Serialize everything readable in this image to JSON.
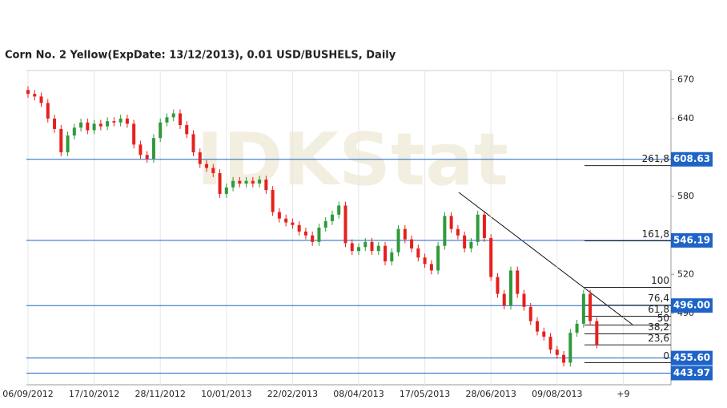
{
  "chart_data": {
    "type": "candlestick",
    "title": "Corn  No. 2 Yellow(ExpDate: 13/12/2013), 0.01 USD/BUSHELS, Daily",
    "watermark": "IDKStat",
    "categories": [
      "06/09/2012",
      null,
      null,
      null,
      null,
      null,
      null,
      null,
      null,
      null,
      "17/10/2012",
      null,
      null,
      null,
      null,
      null,
      null,
      null,
      null,
      null,
      "28/11/2012",
      null,
      null,
      null,
      null,
      null,
      null,
      null,
      null,
      null,
      "10/01/2013",
      null,
      null,
      null,
      null,
      null,
      null,
      null,
      null,
      null,
      "22/02/2013",
      null,
      null,
      null,
      null,
      null,
      null,
      null,
      null,
      null,
      "08/04/2013",
      null,
      null,
      null,
      null,
      null,
      null,
      null,
      null,
      null,
      "17/05/2013",
      null,
      null,
      null,
      null,
      null,
      null,
      null,
      null,
      null,
      "28/06/2013",
      null,
      null,
      null,
      null,
      null,
      null,
      null,
      null,
      null,
      "09/08/2013",
      null,
      null,
      null,
      null,
      null,
      null,
      null,
      null,
      null,
      "+9"
    ],
    "open": [
      662,
      659,
      657,
      652,
      640,
      632,
      614,
      627,
      633,
      637,
      631,
      636,
      634,
      638,
      637,
      640,
      636,
      620,
      612,
      609,
      625,
      637,
      641,
      644,
      635,
      628,
      614,
      605,
      602,
      598,
      582,
      587,
      592,
      590,
      592,
      590,
      593,
      585,
      568,
      563,
      560,
      558,
      553,
      550,
      545,
      556,
      561,
      566,
      573,
      544,
      538,
      541,
      545,
      538,
      542,
      530,
      537,
      555,
      547,
      540,
      533,
      528,
      523,
      542,
      565,
      555,
      550,
      540,
      545,
      566,
      548,
      518,
      505,
      496,
      523,
      505,
      495,
      484,
      476,
      472,
      462,
      458,
      452,
      475,
      482,
      505,
      484,
      null,
      null,
      null,
      null
    ],
    "high": [
      665,
      662,
      660,
      655,
      643,
      635,
      630,
      636,
      640,
      640,
      639,
      639,
      641,
      641,
      643,
      643,
      639,
      623,
      615,
      628,
      640,
      644,
      647,
      647,
      638,
      631,
      617,
      608,
      605,
      601,
      590,
      595,
      595,
      595,
      595,
      596,
      596,
      588,
      571,
      566,
      563,
      561,
      556,
      553,
      559,
      564,
      569,
      576,
      576,
      547,
      544,
      548,
      548,
      545,
      545,
      540,
      558,
      558,
      550,
      543,
      536,
      531,
      545,
      568,
      568,
      558,
      553,
      548,
      569,
      569,
      551,
      521,
      508,
      526,
      526,
      508,
      498,
      487,
      479,
      475,
      465,
      461,
      478,
      485,
      508,
      508,
      487,
      null,
      null,
      null,
      null
    ],
    "low": [
      656,
      654,
      649,
      637,
      629,
      611,
      611,
      624,
      630,
      628,
      628,
      631,
      631,
      634,
      634,
      633,
      617,
      609,
      606,
      606,
      622,
      634,
      638,
      632,
      625,
      611,
      602,
      599,
      595,
      579,
      579,
      584,
      587,
      587,
      587,
      587,
      582,
      565,
      560,
      557,
      555,
      550,
      547,
      542,
      542,
      553,
      558,
      563,
      541,
      535,
      535,
      538,
      535,
      535,
      527,
      527,
      534,
      544,
      537,
      530,
      525,
      520,
      520,
      539,
      552,
      547,
      537,
      537,
      542,
      545,
      515,
      502,
      493,
      493,
      502,
      492,
      481,
      473,
      469,
      459,
      455,
      449,
      449,
      472,
      479,
      481,
      463,
      null,
      null,
      null,
      null
    ],
    "close": [
      659,
      657,
      652,
      640,
      632,
      614,
      627,
      633,
      637,
      631,
      636,
      634,
      638,
      637,
      640,
      636,
      620,
      612,
      609,
      625,
      637,
      641,
      644,
      635,
      628,
      614,
      605,
      602,
      598,
      582,
      587,
      592,
      590,
      592,
      590,
      593,
      585,
      568,
      563,
      560,
      558,
      553,
      550,
      545,
      556,
      561,
      566,
      573,
      544,
      538,
      541,
      545,
      538,
      542,
      530,
      537,
      555,
      547,
      540,
      533,
      528,
      523,
      542,
      565,
      555,
      550,
      540,
      545,
      566,
      548,
      518,
      505,
      496,
      523,
      505,
      495,
      484,
      476,
      472,
      462,
      458,
      452,
      475,
      482,
      505,
      484,
      466,
      null,
      null,
      null,
      null
    ],
    "up_color": "#2f9a3c",
    "down_color": "#e5211c",
    "ylim": [
      435,
      677
    ],
    "yticks": [
      490,
      520,
      580,
      640,
      670
    ],
    "price_lines": [
      {
        "value": 608.63,
        "label": "608.63"
      },
      {
        "value": 546.19,
        "label": "546.19"
      },
      {
        "value": 496.0,
        "label": "496.00"
      },
      {
        "value": 455.6,
        "label": "455.60"
      },
      {
        "value": 443.97,
        "label": "443.97"
      }
    ],
    "price_line_color": "#1e64c8",
    "fib_levels": [
      {
        "value": 603.8,
        "label": "261,8"
      },
      {
        "value": 545.8,
        "label": "161,8"
      },
      {
        "value": 510,
        "label": "100"
      },
      {
        "value": 496.3,
        "label": "76,4"
      },
      {
        "value": 487.8,
        "label": "61,8"
      },
      {
        "value": 481,
        "label": "50"
      },
      {
        "value": 474.2,
        "label": "38,2"
      },
      {
        "value": 465.7,
        "label": "23,6"
      },
      {
        "value": 452,
        "label": "0"
      }
    ]
  }
}
